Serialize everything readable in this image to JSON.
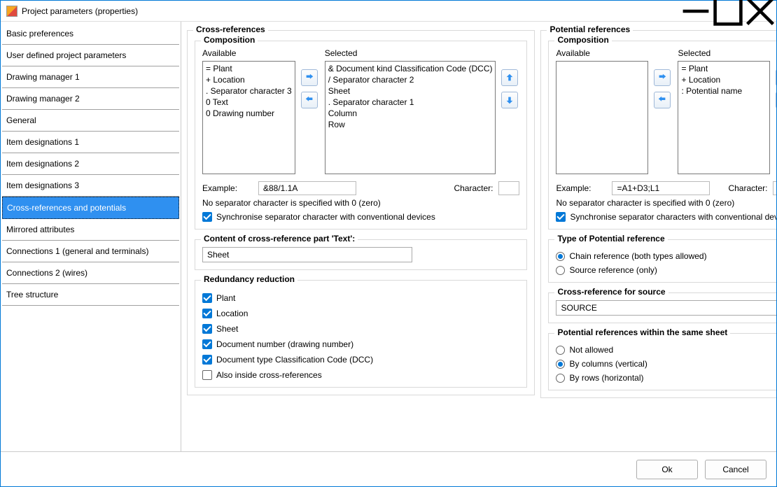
{
  "window": {
    "title": "Project parameters (properties)"
  },
  "sidebar": {
    "items": [
      "Basic preferences",
      "User defined project parameters",
      "Drawing manager 1",
      "Drawing manager 2",
      "General",
      "Item designations 1",
      "Item designations 2",
      "Item designations 3",
      "Cross-references and potentials",
      "Mirrored attributes",
      "Connections 1 (general and terminals)",
      "Connections 2 (wires)",
      "Tree structure"
    ],
    "selected_index": 8
  },
  "cross": {
    "title": "Cross-references",
    "composition": {
      "legend": "Composition",
      "available_label": "Available",
      "selected_label": "Selected",
      "available": [
        "= Plant",
        "+ Location",
        ". Separator character 3",
        "0 Text",
        "0 Drawing number"
      ],
      "selected": [
        "& Document kind Classification Code (DCC)",
        "/ Separator character 2",
        "Sheet",
        ". Separator character 1",
        "Column",
        "Row"
      ],
      "example_label": "Example:",
      "example_value": "&88/1.1A",
      "character_label": "Character:",
      "note": "No separator character is specified with 0 (zero)",
      "sync_label": "Synchronise separator character with conventional devices",
      "sync_checked": true
    },
    "content_text": {
      "legend": "Content of cross-reference part 'Text':",
      "value": "Sheet"
    },
    "redundancy": {
      "legend": "Redundancy reduction",
      "items": [
        {
          "label": "Plant",
          "checked": true
        },
        {
          "label": "Location",
          "checked": true
        },
        {
          "label": "Sheet",
          "checked": true
        },
        {
          "label": "Document number (drawing number)",
          "checked": true
        },
        {
          "label": "Document type Classification Code (DCC)",
          "checked": true
        },
        {
          "label": "Also inside cross-references",
          "checked": false
        }
      ]
    }
  },
  "potential": {
    "title": "Potential references",
    "composition": {
      "legend": "Composition",
      "available_label": "Available",
      "selected_label": "Selected",
      "available": [],
      "selected": [
        "= Plant",
        "+ Location",
        ": Potential name"
      ],
      "example_label": "Example:",
      "example_value": "=A1+D3;L1",
      "character_label": "Character:",
      "note": "No separator character is specified with 0 (zero)",
      "sync_label": "Synchronise separator characters with conventional devices",
      "sync_checked": true
    },
    "type": {
      "legend": "Type of Potential reference",
      "options": [
        {
          "label": "Chain reference (both types allowed)",
          "checked": true
        },
        {
          "label": "Source reference (only)",
          "checked": false
        }
      ]
    },
    "source": {
      "legend": "Cross-reference for source",
      "value": "SOURCE"
    },
    "same_sheet": {
      "legend": "Potential references within the same sheet",
      "options": [
        {
          "label": "Not allowed",
          "checked": false
        },
        {
          "label": "By columns (vertical)",
          "checked": true
        },
        {
          "label": "By rows (horizontal)",
          "checked": false
        }
      ]
    }
  },
  "footer": {
    "ok": "Ok",
    "cancel": "Cancel"
  },
  "colors": {
    "accent": "#2f90f0",
    "checkbox": "#0178d7"
  }
}
